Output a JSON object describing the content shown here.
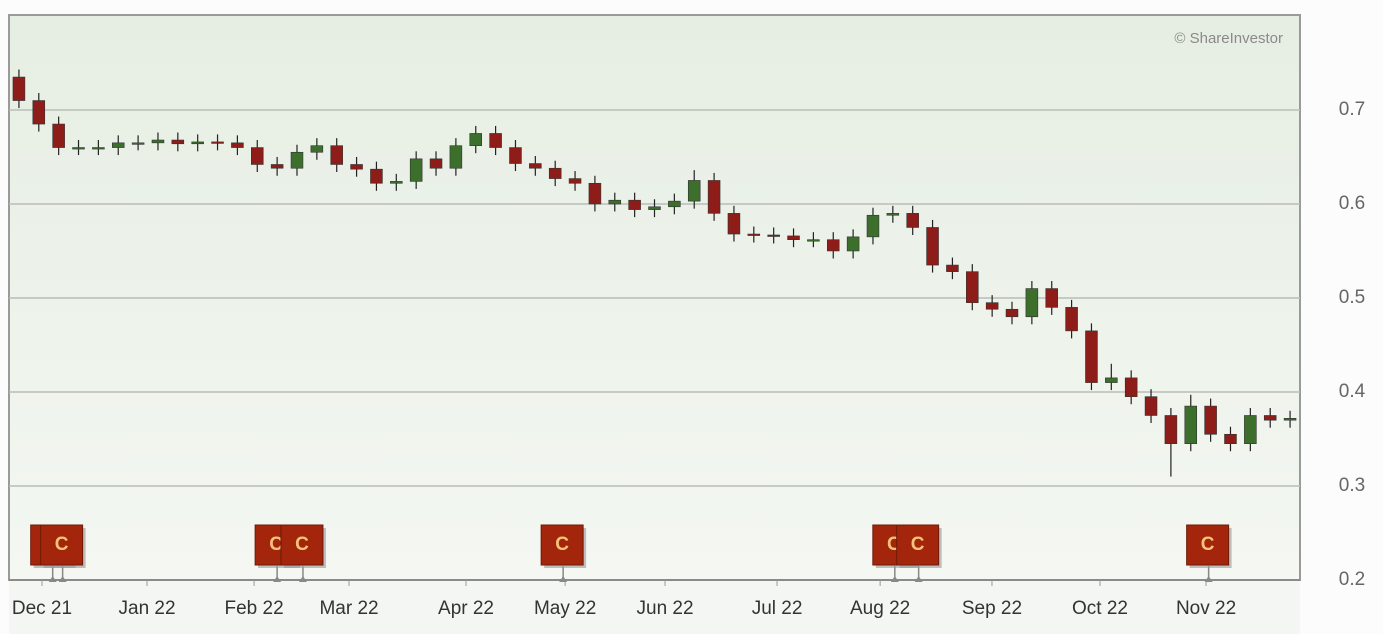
{
  "chart_data": {
    "type": "candlestick",
    "watermark": "© ShareInvestor",
    "open": [
      0.735,
      0.71,
      0.685,
      0.66,
      0.66,
      0.66,
      0.665,
      0.665,
      0.668,
      0.664,
      0.666,
      0.665,
      0.66,
      0.642,
      0.638,
      0.655,
      0.662,
      0.642,
      0.637,
      0.622,
      0.624,
      0.648,
      0.638,
      0.662,
      0.675,
      0.66,
      0.643,
      0.638,
      0.627,
      0.622,
      0.6,
      0.604,
      0.594,
      0.597,
      0.603,
      0.625,
      0.59,
      0.568,
      0.567,
      0.566,
      0.562,
      0.562,
      0.55,
      0.565,
      0.588,
      0.59,
      0.575,
      0.535,
      0.528,
      0.495,
      0.488,
      0.48,
      0.51,
      0.49,
      0.465,
      0.41,
      0.415,
      0.395,
      0.375,
      0.345,
      0.385,
      0.355,
      0.345,
      0.375,
      0.37
    ],
    "high": [
      0.743,
      0.718,
      0.693,
      0.668,
      0.668,
      0.673,
      0.673,
      0.676,
      0.676,
      0.674,
      0.674,
      0.673,
      0.668,
      0.65,
      0.663,
      0.67,
      0.67,
      0.65,
      0.645,
      0.632,
      0.656,
      0.656,
      0.67,
      0.683,
      0.683,
      0.668,
      0.651,
      0.646,
      0.635,
      0.63,
      0.612,
      0.612,
      0.605,
      0.611,
      0.636,
      0.633,
      0.598,
      0.576,
      0.575,
      0.574,
      0.57,
      0.57,
      0.573,
      0.596,
      0.598,
      0.598,
      0.583,
      0.543,
      0.536,
      0.503,
      0.496,
      0.518,
      0.518,
      0.498,
      0.473,
      0.43,
      0.423,
      0.403,
      0.383,
      0.397,
      0.393,
      0.363,
      0.383,
      0.383,
      0.38
    ],
    "low": [
      0.702,
      0.677,
      0.652,
      0.652,
      0.652,
      0.652,
      0.657,
      0.657,
      0.656,
      0.656,
      0.657,
      0.652,
      0.634,
      0.63,
      0.63,
      0.647,
      0.634,
      0.629,
      0.614,
      0.614,
      0.616,
      0.63,
      0.63,
      0.654,
      0.652,
      0.635,
      0.63,
      0.619,
      0.614,
      0.592,
      0.592,
      0.586,
      0.586,
      0.589,
      0.595,
      0.582,
      0.56,
      0.559,
      0.558,
      0.554,
      0.554,
      0.542,
      0.542,
      0.557,
      0.58,
      0.567,
      0.527,
      0.52,
      0.487,
      0.48,
      0.472,
      0.472,
      0.482,
      0.457,
      0.402,
      0.402,
      0.387,
      0.367,
      0.31,
      0.337,
      0.347,
      0.337,
      0.337,
      0.362,
      0.362
    ],
    "close": [
      0.71,
      0.685,
      0.66,
      0.66,
      0.66,
      0.665,
      0.665,
      0.668,
      0.664,
      0.666,
      0.665,
      0.66,
      0.642,
      0.638,
      0.655,
      0.662,
      0.642,
      0.637,
      0.622,
      0.624,
      0.648,
      0.638,
      0.662,
      0.675,
      0.66,
      0.643,
      0.638,
      0.627,
      0.622,
      0.6,
      0.604,
      0.594,
      0.597,
      0.603,
      0.625,
      0.59,
      0.568,
      0.567,
      0.566,
      0.562,
      0.562,
      0.55,
      0.565,
      0.588,
      0.59,
      0.575,
      0.535,
      0.528,
      0.495,
      0.488,
      0.48,
      0.51,
      0.49,
      0.465,
      0.41,
      0.415,
      0.395,
      0.375,
      0.345,
      0.385,
      0.355,
      0.345,
      0.375,
      0.37,
      0.372
    ],
    "up_color": "#3c6e2c",
    "down_color": "#8e1c18",
    "xlim": [
      -0.5,
      64.5
    ],
    "xticks": [
      {
        "value": 1.16,
        "label": "Dec 21"
      },
      {
        "value": 6.45,
        "label": "Jan 22"
      },
      {
        "value": 11.84,
        "label": "Feb 22"
      },
      {
        "value": 16.62,
        "label": "Mar 22"
      },
      {
        "value": 22.51,
        "label": "Apr 22"
      },
      {
        "value": 27.5,
        "label": "May 22"
      },
      {
        "value": 32.53,
        "label": "Jun 22"
      },
      {
        "value": 38.17,
        "label": "Jul 22"
      },
      {
        "value": 43.36,
        "label": "Aug 22"
      },
      {
        "value": 48.99,
        "label": "Sep 22"
      },
      {
        "value": 54.43,
        "label": "Oct 22"
      },
      {
        "value": 59.77,
        "label": "Nov 22"
      }
    ],
    "ylim": [
      0.2,
      0.801
    ],
    "yticks": [
      0.2,
      0.3,
      0.4,
      0.5,
      0.6,
      0.7
    ],
    "grid": true,
    "events": [
      {
        "x": 1.7,
        "label": "C"
      },
      {
        "x": 2.2,
        "label": "C"
      },
      {
        "x": 13.0,
        "label": "C"
      },
      {
        "x": 14.3,
        "label": "C"
      },
      {
        "x": 27.4,
        "label": "C"
      },
      {
        "x": 44.1,
        "label": "C"
      },
      {
        "x": 45.3,
        "label": "C"
      },
      {
        "x": 59.9,
        "label": "C"
      }
    ]
  }
}
